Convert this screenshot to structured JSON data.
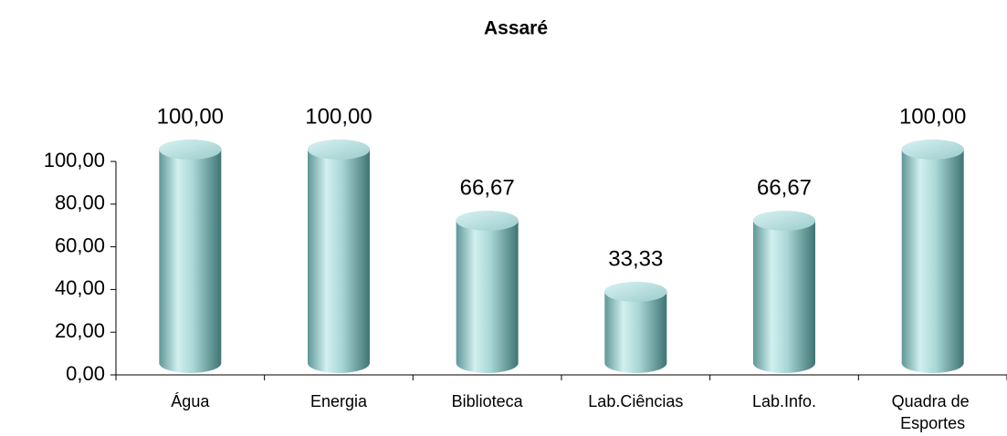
{
  "chart_data": {
    "type": "bar3d",
    "title": "Assaré",
    "categories": [
      "Água",
      "Energia",
      "Biblioteca",
      "Lab.Ciências",
      "Lab.Info.",
      "Quadra de Esportes"
    ],
    "values": [
      100,
      100,
      66.67,
      33.33,
      66.67,
      100
    ],
    "value_labels": [
      "100,00",
      "100,00",
      "66,67",
      "33,33",
      "66,67",
      "100,00"
    ],
    "color": "#8fc4c4",
    "ylim": [
      0,
      100
    ],
    "yticks": [
      {
        "value": 0,
        "label": "0,00"
      },
      {
        "value": 20,
        "label": "20,00"
      },
      {
        "value": 40,
        "label": "40,00"
      },
      {
        "value": 60,
        "label": "60,00"
      },
      {
        "value": 80,
        "label": "80,00"
      },
      {
        "value": 100,
        "label": "100,00"
      }
    ]
  }
}
